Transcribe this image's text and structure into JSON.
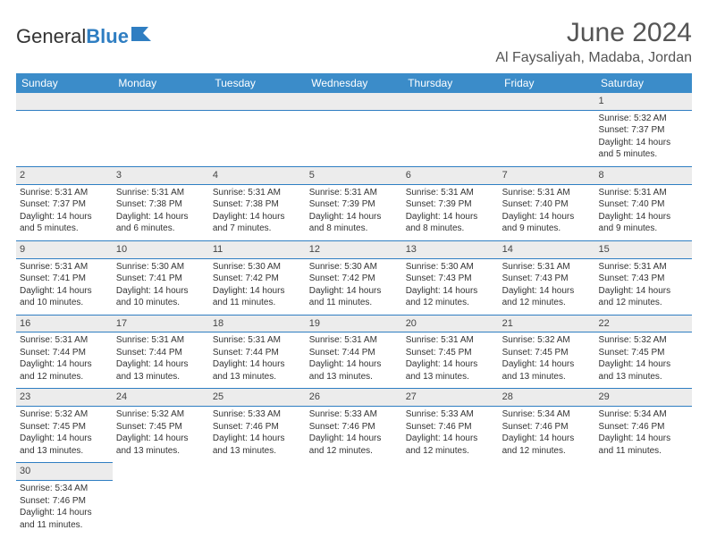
{
  "logo": {
    "part1": "General",
    "part2": "Blue"
  },
  "title": "June 2024",
  "location": "Al Faysaliyah, Madaba, Jordan",
  "colors": {
    "header_bg": "#3b8cc9",
    "header_fg": "#ffffff",
    "rule": "#2f7ec2",
    "daynum_bg": "#ececec",
    "logo_blue": "#2f7ec2"
  },
  "weekdays": [
    "Sunday",
    "Monday",
    "Tuesday",
    "Wednesday",
    "Thursday",
    "Friday",
    "Saturday"
  ],
  "weeks": [
    [
      null,
      null,
      null,
      null,
      null,
      null,
      {
        "n": "1",
        "sr": "Sunrise: 5:32 AM",
        "ss": "Sunset: 7:37 PM",
        "d1": "Daylight: 14 hours",
        "d2": "and 5 minutes."
      }
    ],
    [
      {
        "n": "2",
        "sr": "Sunrise: 5:31 AM",
        "ss": "Sunset: 7:37 PM",
        "d1": "Daylight: 14 hours",
        "d2": "and 5 minutes."
      },
      {
        "n": "3",
        "sr": "Sunrise: 5:31 AM",
        "ss": "Sunset: 7:38 PM",
        "d1": "Daylight: 14 hours",
        "d2": "and 6 minutes."
      },
      {
        "n": "4",
        "sr": "Sunrise: 5:31 AM",
        "ss": "Sunset: 7:38 PM",
        "d1": "Daylight: 14 hours",
        "d2": "and 7 minutes."
      },
      {
        "n": "5",
        "sr": "Sunrise: 5:31 AM",
        "ss": "Sunset: 7:39 PM",
        "d1": "Daylight: 14 hours",
        "d2": "and 8 minutes."
      },
      {
        "n": "6",
        "sr": "Sunrise: 5:31 AM",
        "ss": "Sunset: 7:39 PM",
        "d1": "Daylight: 14 hours",
        "d2": "and 8 minutes."
      },
      {
        "n": "7",
        "sr": "Sunrise: 5:31 AM",
        "ss": "Sunset: 7:40 PM",
        "d1": "Daylight: 14 hours",
        "d2": "and 9 minutes."
      },
      {
        "n": "8",
        "sr": "Sunrise: 5:31 AM",
        "ss": "Sunset: 7:40 PM",
        "d1": "Daylight: 14 hours",
        "d2": "and 9 minutes."
      }
    ],
    [
      {
        "n": "9",
        "sr": "Sunrise: 5:31 AM",
        "ss": "Sunset: 7:41 PM",
        "d1": "Daylight: 14 hours",
        "d2": "and 10 minutes."
      },
      {
        "n": "10",
        "sr": "Sunrise: 5:30 AM",
        "ss": "Sunset: 7:41 PM",
        "d1": "Daylight: 14 hours",
        "d2": "and 10 minutes."
      },
      {
        "n": "11",
        "sr": "Sunrise: 5:30 AM",
        "ss": "Sunset: 7:42 PM",
        "d1": "Daylight: 14 hours",
        "d2": "and 11 minutes."
      },
      {
        "n": "12",
        "sr": "Sunrise: 5:30 AM",
        "ss": "Sunset: 7:42 PM",
        "d1": "Daylight: 14 hours",
        "d2": "and 11 minutes."
      },
      {
        "n": "13",
        "sr": "Sunrise: 5:30 AM",
        "ss": "Sunset: 7:43 PM",
        "d1": "Daylight: 14 hours",
        "d2": "and 12 minutes."
      },
      {
        "n": "14",
        "sr": "Sunrise: 5:31 AM",
        "ss": "Sunset: 7:43 PM",
        "d1": "Daylight: 14 hours",
        "d2": "and 12 minutes."
      },
      {
        "n": "15",
        "sr": "Sunrise: 5:31 AM",
        "ss": "Sunset: 7:43 PM",
        "d1": "Daylight: 14 hours",
        "d2": "and 12 minutes."
      }
    ],
    [
      {
        "n": "16",
        "sr": "Sunrise: 5:31 AM",
        "ss": "Sunset: 7:44 PM",
        "d1": "Daylight: 14 hours",
        "d2": "and 12 minutes."
      },
      {
        "n": "17",
        "sr": "Sunrise: 5:31 AM",
        "ss": "Sunset: 7:44 PM",
        "d1": "Daylight: 14 hours",
        "d2": "and 13 minutes."
      },
      {
        "n": "18",
        "sr": "Sunrise: 5:31 AM",
        "ss": "Sunset: 7:44 PM",
        "d1": "Daylight: 14 hours",
        "d2": "and 13 minutes."
      },
      {
        "n": "19",
        "sr": "Sunrise: 5:31 AM",
        "ss": "Sunset: 7:44 PM",
        "d1": "Daylight: 14 hours",
        "d2": "and 13 minutes."
      },
      {
        "n": "20",
        "sr": "Sunrise: 5:31 AM",
        "ss": "Sunset: 7:45 PM",
        "d1": "Daylight: 14 hours",
        "d2": "and 13 minutes."
      },
      {
        "n": "21",
        "sr": "Sunrise: 5:32 AM",
        "ss": "Sunset: 7:45 PM",
        "d1": "Daylight: 14 hours",
        "d2": "and 13 minutes."
      },
      {
        "n": "22",
        "sr": "Sunrise: 5:32 AM",
        "ss": "Sunset: 7:45 PM",
        "d1": "Daylight: 14 hours",
        "d2": "and 13 minutes."
      }
    ],
    [
      {
        "n": "23",
        "sr": "Sunrise: 5:32 AM",
        "ss": "Sunset: 7:45 PM",
        "d1": "Daylight: 14 hours",
        "d2": "and 13 minutes."
      },
      {
        "n": "24",
        "sr": "Sunrise: 5:32 AM",
        "ss": "Sunset: 7:45 PM",
        "d1": "Daylight: 14 hours",
        "d2": "and 13 minutes."
      },
      {
        "n": "25",
        "sr": "Sunrise: 5:33 AM",
        "ss": "Sunset: 7:46 PM",
        "d1": "Daylight: 14 hours",
        "d2": "and 13 minutes."
      },
      {
        "n": "26",
        "sr": "Sunrise: 5:33 AM",
        "ss": "Sunset: 7:46 PM",
        "d1": "Daylight: 14 hours",
        "d2": "and 12 minutes."
      },
      {
        "n": "27",
        "sr": "Sunrise: 5:33 AM",
        "ss": "Sunset: 7:46 PM",
        "d1": "Daylight: 14 hours",
        "d2": "and 12 minutes."
      },
      {
        "n": "28",
        "sr": "Sunrise: 5:34 AM",
        "ss": "Sunset: 7:46 PM",
        "d1": "Daylight: 14 hours",
        "d2": "and 12 minutes."
      },
      {
        "n": "29",
        "sr": "Sunrise: 5:34 AM",
        "ss": "Sunset: 7:46 PM",
        "d1": "Daylight: 14 hours",
        "d2": "and 11 minutes."
      }
    ],
    [
      {
        "n": "30",
        "sr": "Sunrise: 5:34 AM",
        "ss": "Sunset: 7:46 PM",
        "d1": "Daylight: 14 hours",
        "d2": "and 11 minutes."
      },
      null,
      null,
      null,
      null,
      null,
      null
    ]
  ]
}
